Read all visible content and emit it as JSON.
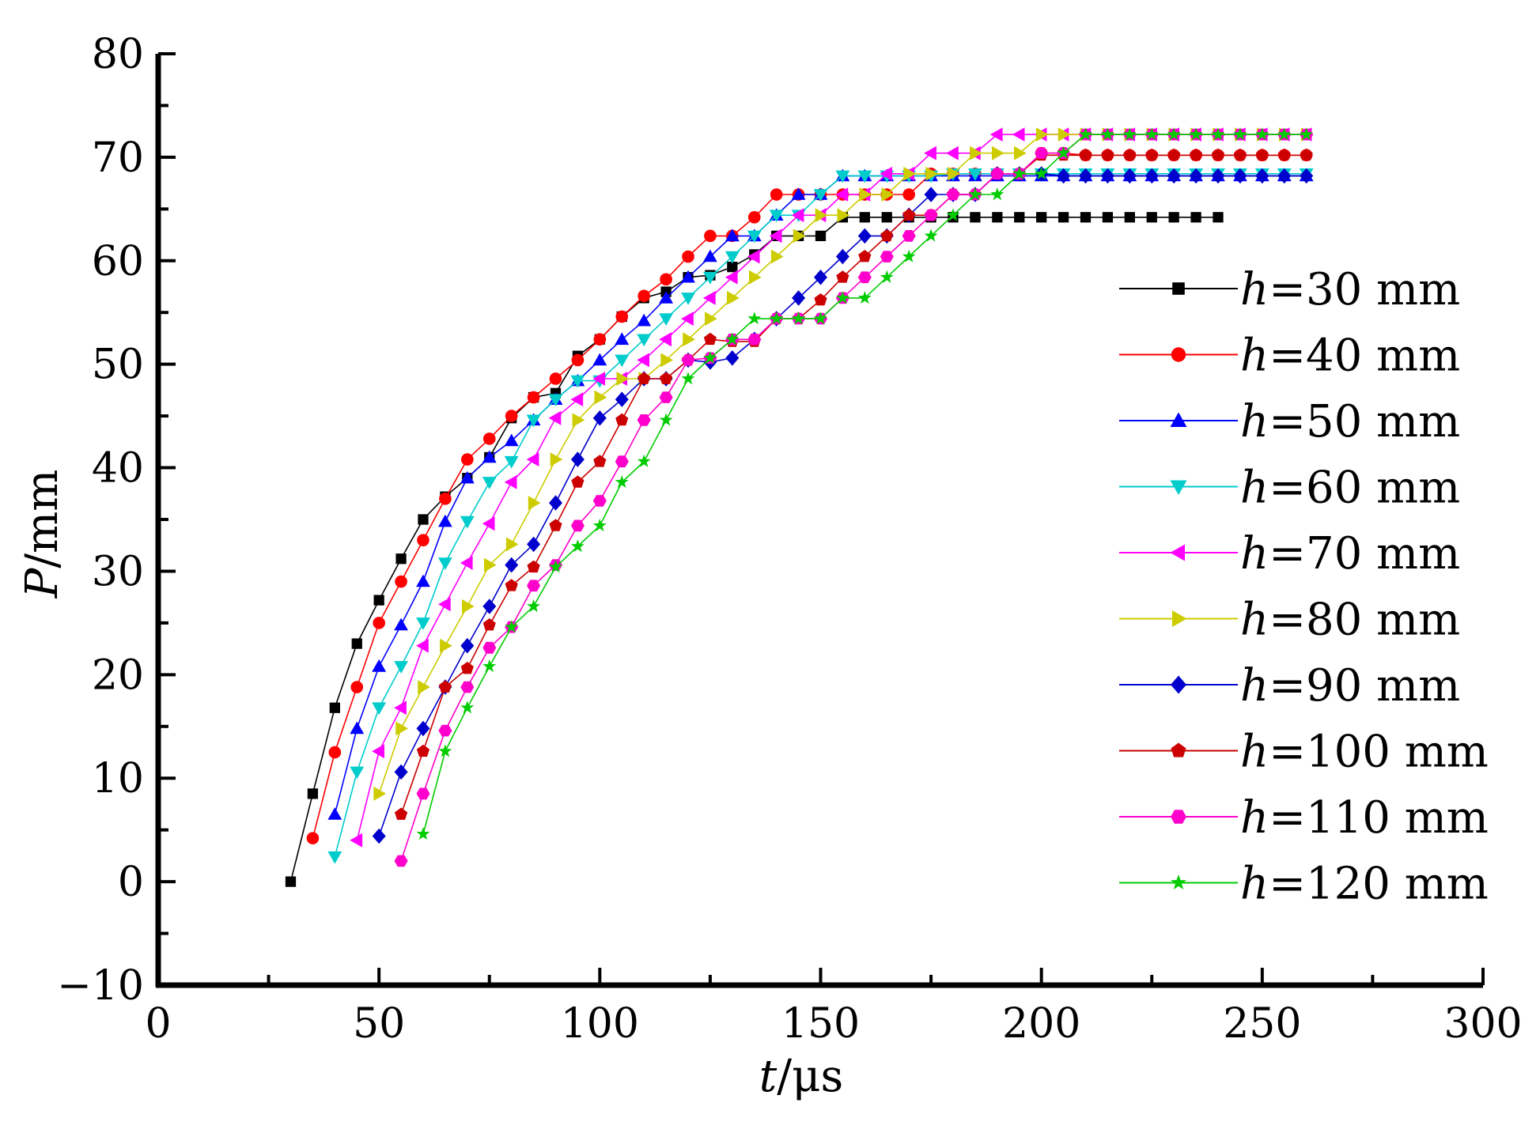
{
  "chart_data": {
    "type": "line",
    "xlabel": {
      "italic": "t",
      "rest": "/μs"
    },
    "ylabel": {
      "italic": "P",
      "rest": "/mm"
    },
    "xlim": [
      0,
      300
    ],
    "ylim": [
      -10,
      80
    ],
    "x_ticks": [
      0,
      50,
      100,
      150,
      200,
      250,
      300
    ],
    "x_tick_labels": [
      "0",
      "50",
      "100",
      "150",
      "200",
      "250",
      "300"
    ],
    "y_ticks": [
      -10,
      0,
      10,
      20,
      30,
      40,
      50,
      60,
      70,
      80
    ],
    "y_tick_labels": [
      "−10",
      "0",
      "10",
      "20",
      "30",
      "40",
      "50",
      "60",
      "70",
      "80"
    ],
    "grid": false,
    "legend_position": "right",
    "series": [
      {
        "name": "h=30 mm",
        "label_italic": "h",
        "label_rest": "=30 mm",
        "color": "#000000",
        "marker": "square",
        "x": [
          30,
          35,
          40,
          45,
          50,
          55,
          60,
          65,
          70,
          75,
          80,
          85,
          90,
          95,
          100,
          105,
          110,
          115,
          120,
          125,
          130,
          135,
          140,
          145,
          150,
          155,
          160,
          165,
          170,
          175,
          180,
          185,
          190,
          195,
          200,
          205,
          210,
          215,
          220,
          225,
          230,
          235,
          240
        ],
        "y": [
          0,
          8.5,
          16.8,
          23,
          27.2,
          31.2,
          35,
          37.2,
          39,
          41,
          44.8,
          46.8,
          47.2,
          50.8,
          52.4,
          54.6,
          56.4,
          57,
          58.4,
          58.6,
          59.4,
          60.6,
          62.4,
          62.4,
          62.4,
          64.2,
          64.2,
          64.2,
          64.2,
          64.2,
          64.2,
          64.2,
          64.2,
          64.2,
          64.2,
          64.2,
          64.2,
          64.2,
          64.2,
          64.2,
          64.2,
          64.2,
          64.2
        ]
      },
      {
        "name": "h=40 mm",
        "label_italic": "h",
        "label_rest": "=40 mm",
        "color": "#ff0000",
        "marker": "circle",
        "x": [
          35,
          40,
          45,
          50,
          55,
          60,
          65,
          70,
          75,
          80,
          85,
          90,
          95,
          100,
          105,
          110,
          115,
          120,
          125,
          130,
          135,
          140,
          145,
          150,
          155,
          160,
          165,
          170,
          175,
          180,
          185,
          190,
          195,
          200,
          205,
          210,
          215,
          220,
          225,
          230,
          235,
          240,
          245,
          250,
          255,
          260
        ],
        "y": [
          4.2,
          12.5,
          18.8,
          25,
          29,
          33,
          37,
          40.8,
          42.8,
          45,
          46.8,
          48.6,
          50.4,
          52.4,
          54.6,
          56.6,
          58.2,
          60.4,
          62.4,
          62.4,
          64.2,
          66.4,
          66.4,
          66.4,
          66.4,
          66.4,
          66.4,
          66.4,
          68.4,
          68.4,
          68.4,
          68.4,
          68.4,
          70.4,
          70.4,
          70.2,
          70.2,
          70.2,
          70.2,
          70.2,
          70.2,
          70.2,
          70.2,
          70.2,
          70.2,
          70.2
        ]
      },
      {
        "name": "h=50 mm",
        "label_italic": "h",
        "label_rest": "=50 mm",
        "color": "#0000ff",
        "marker": "triangle-up",
        "x": [
          40,
          45,
          50,
          55,
          60,
          65,
          70,
          75,
          80,
          85,
          90,
          95,
          100,
          105,
          110,
          115,
          120,
          125,
          130,
          135,
          140,
          145,
          150,
          155,
          160,
          165,
          170,
          175,
          180,
          185,
          190,
          195,
          200,
          205,
          210,
          215,
          220,
          225,
          230,
          235,
          240,
          245,
          250,
          255,
          260
        ],
        "y": [
          6.5,
          14.8,
          20.8,
          24.8,
          29,
          34.8,
          39,
          41,
          42.6,
          44.6,
          46.6,
          48.4,
          50.4,
          52.4,
          54.2,
          56.4,
          58.4,
          60.4,
          62.4,
          62.4,
          64.4,
          66.4,
          66.4,
          68.2,
          68.2,
          68.2,
          68.2,
          68.2,
          68.2,
          68.2,
          68.2,
          68.2,
          68.2,
          68.2,
          68.2,
          68.2,
          68.2,
          68.2,
          68.2,
          68.2,
          68.2,
          68.2,
          68.2,
          68.2,
          68.2
        ]
      },
      {
        "name": "h=60 mm",
        "label_italic": "h",
        "label_rest": "=60 mm",
        "color": "#00cccc",
        "marker": "triangle-down",
        "x": [
          40,
          45,
          50,
          55,
          60,
          65,
          70,
          75,
          80,
          85,
          90,
          95,
          100,
          105,
          110,
          115,
          120,
          125,
          130,
          135,
          140,
          145,
          150,
          155,
          160,
          165,
          170,
          175,
          180,
          185,
          190,
          195,
          200,
          205,
          210,
          215,
          220,
          225,
          230,
          235,
          240,
          245,
          250,
          255,
          260
        ],
        "y": [
          2.4,
          10.6,
          16.8,
          20.8,
          25,
          30.8,
          34.8,
          38.6,
          40.6,
          44.6,
          46.6,
          48.4,
          48.4,
          50.4,
          52.4,
          54.4,
          56.4,
          58.4,
          60.4,
          62.4,
          64.4,
          64.4,
          66.4,
          68.2,
          68.2,
          68.2,
          68.2,
          68.2,
          68.4,
          68.4,
          68.4,
          68.4,
          68.4,
          68.4,
          68.4,
          68.4,
          68.4,
          68.4,
          68.4,
          68.4,
          68.4,
          68.4,
          68.4,
          68.4,
          68.4
        ]
      },
      {
        "name": "h=70 mm",
        "label_italic": "h",
        "label_rest": "=70 mm",
        "color": "#ff00ff",
        "marker": "triangle-left",
        "x": [
          45,
          50,
          55,
          60,
          65,
          70,
          75,
          80,
          85,
          90,
          95,
          100,
          105,
          110,
          115,
          120,
          125,
          130,
          135,
          140,
          145,
          150,
          155,
          160,
          165,
          170,
          175,
          180,
          185,
          190,
          195,
          200,
          205,
          210,
          215,
          220,
          225,
          230,
          235,
          240,
          245,
          250,
          255,
          260
        ],
        "y": [
          4,
          12.6,
          16.8,
          22.8,
          26.8,
          30.8,
          34.6,
          38.6,
          40.8,
          44.8,
          46.6,
          48.6,
          48.6,
          50.4,
          52.4,
          54.4,
          56.4,
          58.4,
          60.4,
          62.4,
          64.4,
          64.4,
          66.4,
          66.4,
          68.4,
          68.4,
          70.4,
          70.4,
          70.4,
          72.2,
          72.2,
          72.2,
          72.2,
          72.2,
          72.2,
          72.2,
          72.2,
          72.2,
          72.2,
          72.2,
          72.2,
          72.2,
          72.2,
          72.2
        ]
      },
      {
        "name": "h=80 mm",
        "label_italic": "h",
        "label_rest": "=80 mm",
        "color": "#cccc00",
        "marker": "triangle-right",
        "x": [
          50,
          55,
          60,
          65,
          70,
          75,
          80,
          85,
          90,
          95,
          100,
          105,
          110,
          115,
          120,
          125,
          130,
          135,
          140,
          145,
          150,
          155,
          160,
          165,
          170,
          175,
          180,
          185,
          190,
          195,
          200,
          205,
          210,
          215,
          220,
          225,
          230,
          235,
          240,
          245,
          250,
          255,
          260
        ],
        "y": [
          8.5,
          14.8,
          18.8,
          22.8,
          26.6,
          30.6,
          32.6,
          36.6,
          40.8,
          44.6,
          46.8,
          48.6,
          48.6,
          50.4,
          52.4,
          54.4,
          56.4,
          58.4,
          60.4,
          62.4,
          64.4,
          64.4,
          66.4,
          66.4,
          68.4,
          68.4,
          68.4,
          70.4,
          70.4,
          70.4,
          72.2,
          72.2,
          72.2,
          72.2,
          72.2,
          72.2,
          72.2,
          72.2,
          72.2,
          72.2,
          72.2,
          72.2,
          72.2
        ]
      },
      {
        "name": "h=90 mm",
        "label_italic": "h",
        "label_rest": "=90 mm",
        "color": "#0000cc",
        "marker": "diamond",
        "x": [
          50,
          55,
          60,
          65,
          70,
          75,
          80,
          85,
          90,
          95,
          100,
          105,
          110,
          115,
          120,
          125,
          130,
          135,
          140,
          145,
          150,
          155,
          160,
          165,
          170,
          175,
          180,
          185,
          190,
          195,
          200,
          205,
          210,
          215,
          220,
          225,
          230,
          235,
          240,
          245,
          250,
          255,
          260
        ],
        "y": [
          4.4,
          10.6,
          14.8,
          18.8,
          22.8,
          26.6,
          30.6,
          32.6,
          36.6,
          40.8,
          44.8,
          46.6,
          48.6,
          48.6,
          50.4,
          50.2,
          50.6,
          52.4,
          54.4,
          56.4,
          58.4,
          60.4,
          62.4,
          62.4,
          64.4,
          66.4,
          66.4,
          66.4,
          68.4,
          68.4,
          68.4,
          68.2,
          68.2,
          68.2,
          68.2,
          68.2,
          68.2,
          68.2,
          68.2,
          68.2,
          68.2,
          68.2,
          68.2
        ]
      },
      {
        "name": "h=100 mm",
        "label_italic": "h",
        "label_rest": "=100 mm",
        "color": "#cc0000",
        "marker": "pentagon",
        "x": [
          55,
          60,
          65,
          70,
          75,
          80,
          85,
          90,
          95,
          100,
          105,
          110,
          115,
          120,
          125,
          130,
          135,
          140,
          145,
          150,
          155,
          160,
          165,
          170,
          175,
          180,
          185,
          190,
          195,
          200,
          205,
          210,
          215,
          220,
          225,
          230,
          235,
          240,
          245,
          250,
          255,
          260
        ],
        "y": [
          6.5,
          12.6,
          18.8,
          20.6,
          24.8,
          28.6,
          30.4,
          34.4,
          38.6,
          40.6,
          44.6,
          48.6,
          48.6,
          50.4,
          52.4,
          52.2,
          52.2,
          54.4,
          54.4,
          56.2,
          58.4,
          60.4,
          62.4,
          64.4,
          64.4,
          66.4,
          66.4,
          68.4,
          68.4,
          70.2,
          70.2,
          70.2,
          70.2,
          70.2,
          70.2,
          70.2,
          70.2,
          70.2,
          70.2,
          70.2,
          70.2,
          70.2
        ]
      },
      {
        "name": "h=110 mm",
        "label_italic": "h",
        "label_rest": "=110 mm",
        "color": "#ff00cc",
        "marker": "hexagon",
        "x": [
          55,
          60,
          65,
          70,
          75,
          80,
          85,
          90,
          95,
          100,
          105,
          110,
          115,
          120,
          125,
          130,
          135,
          140,
          145,
          150,
          155,
          160,
          165,
          170,
          175,
          180,
          185,
          190,
          195,
          200,
          205,
          210,
          215,
          220,
          225,
          230,
          235,
          240,
          245,
          250,
          255,
          260
        ],
        "y": [
          2,
          8.5,
          14.6,
          18.8,
          22.6,
          24.6,
          28.6,
          30.6,
          34.4,
          36.8,
          40.6,
          44.6,
          46.8,
          50.4,
          50.6,
          52.4,
          52.4,
          54.4,
          54.4,
          54.4,
          56.4,
          58.4,
          60.4,
          62.4,
          64.4,
          66.4,
          66.4,
          68.4,
          68.4,
          70.4,
          70.4,
          72.2,
          72.2,
          72.2,
          72.2,
          72.2,
          72.2,
          72.2,
          72.2,
          72.2,
          72.2,
          72.2
        ]
      },
      {
        "name": "h=120 mm",
        "label_italic": "h",
        "label_rest": "=120 mm",
        "color": "#00cc00",
        "marker": "star",
        "x": [
          60,
          65,
          70,
          75,
          80,
          85,
          90,
          95,
          100,
          105,
          110,
          115,
          120,
          125,
          130,
          135,
          140,
          145,
          150,
          155,
          160,
          165,
          170,
          175,
          180,
          185,
          190,
          195,
          200,
          205,
          210,
          215,
          220,
          225,
          230,
          235,
          240,
          245,
          250,
          255,
          260
        ],
        "y": [
          4.6,
          12.6,
          16.8,
          20.8,
          24.6,
          26.6,
          30.4,
          32.4,
          34.4,
          38.6,
          40.6,
          44.6,
          48.6,
          50.6,
          52.4,
          54.4,
          54.4,
          54.4,
          54.4,
          56.4,
          56.4,
          58.4,
          60.4,
          62.4,
          64.4,
          66.4,
          66.4,
          68.4,
          68.4,
          70.4,
          72.2,
          72.2,
          72.2,
          72.2,
          72.2,
          72.2,
          72.2,
          72.2,
          72.2,
          72.2,
          72.2
        ]
      }
    ]
  }
}
